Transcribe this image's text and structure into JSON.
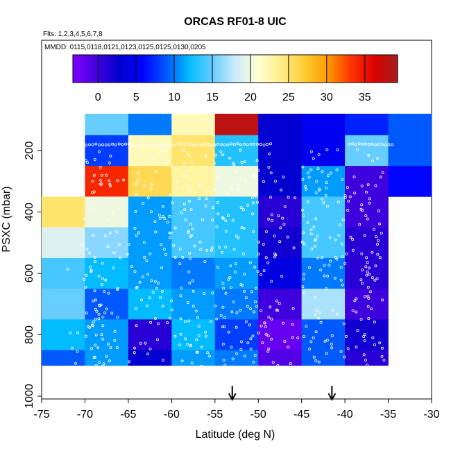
{
  "chart_data": {
    "type": "heatmap",
    "title": "ORCAS RF01-8 UIC",
    "subtitle_flights": "Flts: 1,2,3,4,5,6,7,8",
    "subtitle_dates": "MMDD: 0115,0118,0121,0123,0125,0125,0130,0205",
    "xlabel": "Latitude (deg N)",
    "ylabel": "PSXC (mbar)",
    "xlim": [
      -75,
      -30
    ],
    "ylim": [
      1020,
      90
    ],
    "x_ticks": [
      -75,
      -70,
      -65,
      -60,
      -55,
      -50,
      -45,
      -40,
      -35,
      -30
    ],
    "y_ticks": [
      200,
      400,
      600,
      800,
      1000
    ],
    "colorbar": {
      "range": [
        -3.3,
        39.3
      ],
      "ticks": [
        0,
        5,
        10,
        15,
        20,
        25,
        30,
        35
      ],
      "colors": [
        "#7f00ff",
        "#4400dd",
        "#0000cc",
        "#0000ff",
        "#0055ff",
        "#00bbff",
        "#66ccff",
        "#ccecff",
        "#ffffd0",
        "#ffee88",
        "#ffcc33",
        "#ff9900",
        "#ff3300",
        "#dd0000",
        "#a31f1f"
      ]
    },
    "x_bins": [
      -75,
      -70,
      -65,
      -60,
      -55,
      -50,
      -45,
      -40,
      -35
    ],
    "y_bins": [
      100,
      200,
      300,
      400,
      500,
      600,
      700,
      800,
      900,
      1000
    ],
    "x_bin_width": 5,
    "y_bin_height": 100,
    "cells": [
      [
        null,
        15,
        10,
        22,
        38,
        3,
        5,
        7,
        9
      ],
      [
        null,
        8,
        22,
        25,
        13,
        3,
        5,
        15,
        9
      ],
      [
        null,
        34,
        26,
        23,
        20,
        3,
        11,
        0,
        6
      ],
      [
        25,
        20,
        11,
        14,
        13,
        1,
        14,
        0,
        null
      ],
      [
        19,
        16,
        11,
        14,
        13,
        2,
        14,
        1,
        null
      ],
      [
        14,
        12,
        11,
        10,
        11,
        4,
        10,
        1,
        null
      ],
      [
        15,
        9,
        12,
        11,
        10,
        0,
        17,
        0,
        null
      ],
      [
        12,
        11,
        1,
        12,
        8,
        -2,
        9,
        2,
        null
      ],
      [
        9,
        11,
        3,
        11,
        10,
        -1,
        9,
        1,
        null
      ]
    ],
    "markers": [
      {
        "type": "arrow-down",
        "lat": -53.0
      },
      {
        "type": "arrow-down",
        "lat": -41.5
      }
    ]
  }
}
